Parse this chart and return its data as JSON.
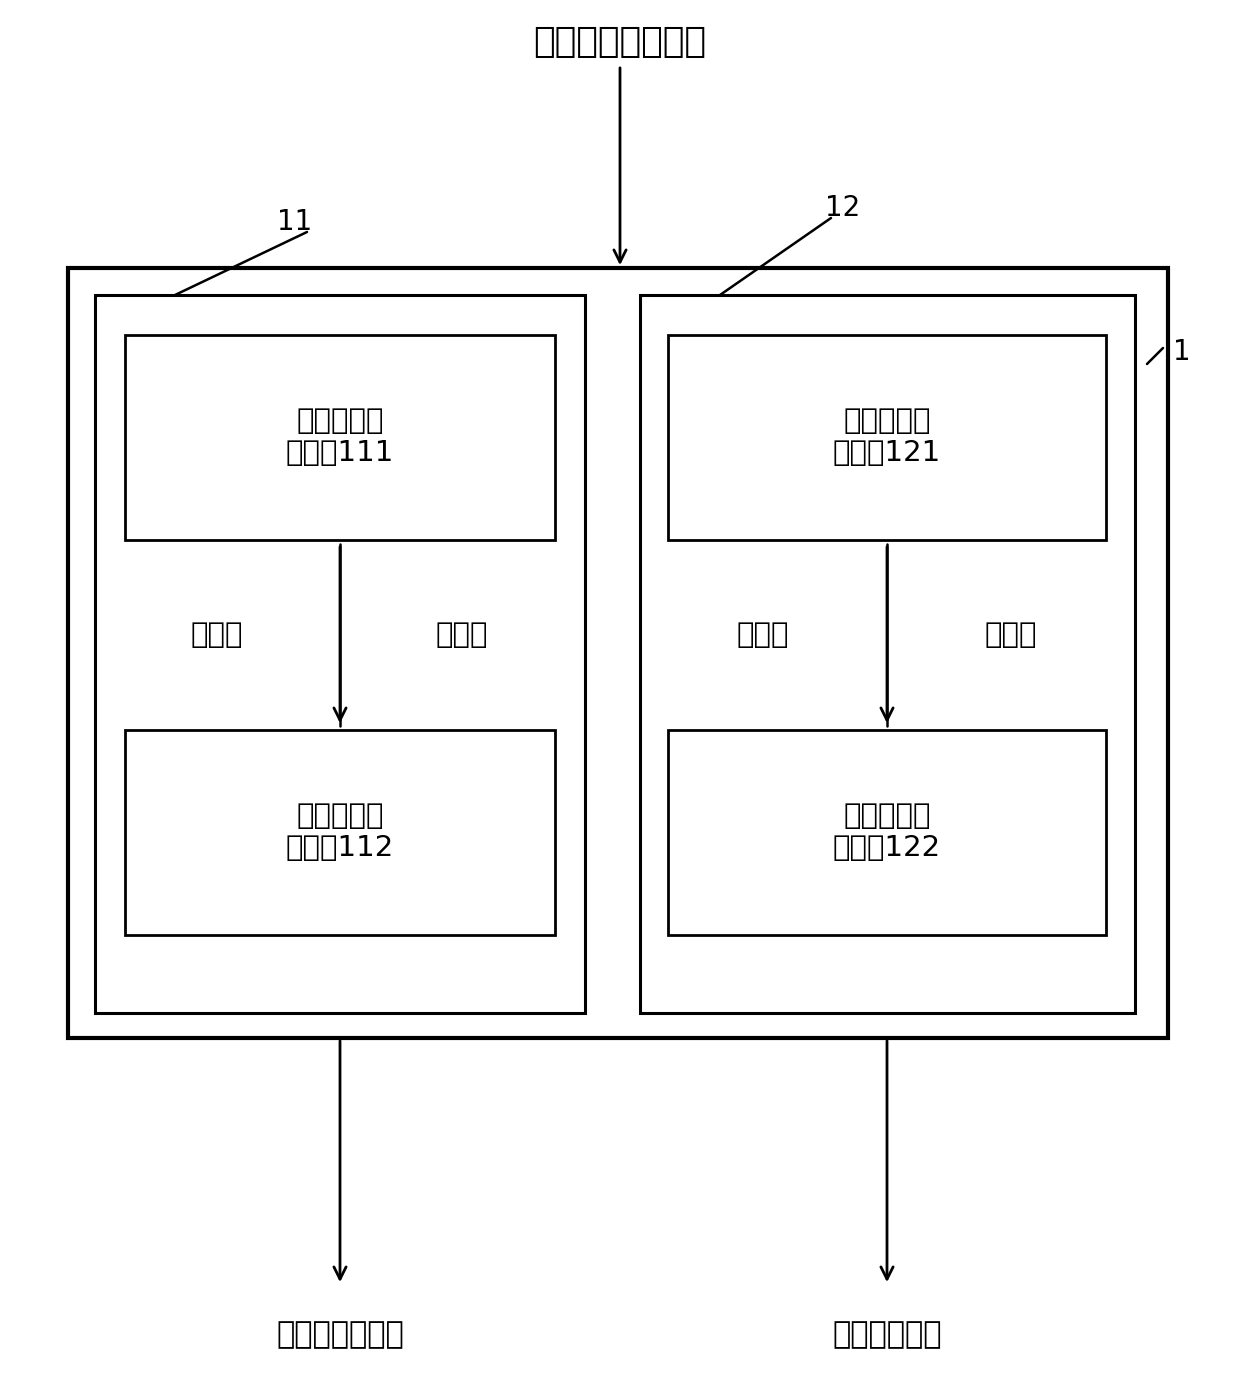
{
  "label_top_arrow": "输入神经元和权值",
  "label_11": "11",
  "label_12": "12",
  "label_1": "1",
  "label_bottom_left": "映射后的神经元",
  "label_bottom_right": "映射后的权值",
  "box1_label1": "第一映射判\n断单元111",
  "box1_label2": "第一映射执\n行单元112",
  "box2_label1": "第二映射判\n断单元121",
  "box2_label2": "第二映射执\n行单元122",
  "mid_left_l": "第一映",
  "mid_left_r": "射单元",
  "mid_right_l": "第二映",
  "mid_right_r": "射单元",
  "bg_color": "#ffffff",
  "font_size_title": 26,
  "font_size_label": 22,
  "font_size_inner": 21,
  "font_size_ref": 20
}
